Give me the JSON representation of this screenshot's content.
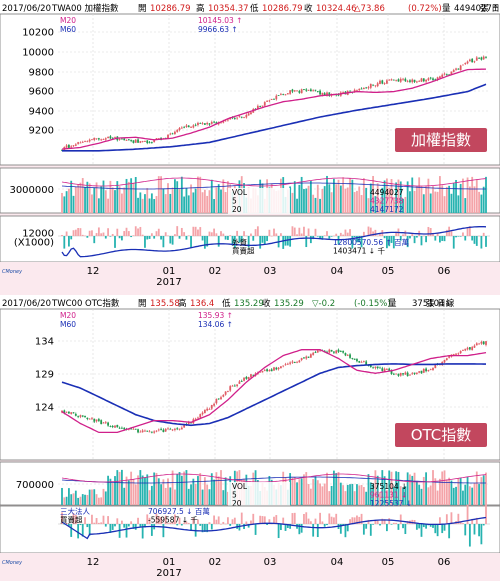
{
  "charts": [
    {
      "date": "2017/06/20",
      "symbol": "TWA00 加權指數",
      "quote": {
        "open_label": "開",
        "open": "10286.79",
        "high_label": "高",
        "high": "10354.37",
        "low_label": "低",
        "low": "10286.79",
        "close_label": "收",
        "close": "10324.46",
        "change": "△73.86",
        "pct": "(0.72%)",
        "vol_label": "量",
        "vol": "4494027↑",
        "tail": "張 日線"
      },
      "ma": [
        {
          "label": "M20",
          "value": "10145.03 ↑",
          "color": "#d0208a"
        },
        {
          "label": "M60",
          "value": "9966.63 ↑",
          "color": "#1a2fb5"
        }
      ],
      "price_ticks": [
        "10200",
        "10000",
        "9800",
        "9600",
        "9400",
        "9200"
      ],
      "badge": "加權指數",
      "vol_tick": "3000000",
      "vol_legend": [
        {
          "label": "VOL",
          "value": "4494027",
          "color": "#000000"
        },
        {
          "label": "5",
          "value": "4327738",
          "color": "#d0208a"
        },
        {
          "label": "20",
          "value": "4147172",
          "color": "#1a2fb5"
        }
      ],
      "ind_ticks": [
        "12000",
        "(X1000)"
      ],
      "ind_legend": [
        {
          "label": "外資",
          "color": "#000000"
        },
        {
          "label": "買賣超",
          "color": "#000000"
        }
      ],
      "ind_values": [
        {
          "value": "12800570.56 ↑ 百萬",
          "color": "#1a2fb5"
        },
        {
          "value": "1403471 ↓ 千",
          "color": "#000000"
        }
      ],
      "months": [
        "12",
        "01",
        "02",
        "03",
        "04",
        "05",
        "06"
      ],
      "year": "2017",
      "logo": "CMoney"
    },
    {
      "date": "2017/06/20",
      "symbol": "TWC00 OTC指數",
      "quote": {
        "open_label": "開",
        "open": "135.58",
        "high_label": "高",
        "high": "136.4",
        "low_label": "低",
        "low": "135.29",
        "close_label": "收",
        "close": "135.29",
        "change": "▽-0.2",
        "pct": "(-0.15%)",
        "vol_label": "量",
        "vol": "375104↓",
        "tail": "張 日線"
      },
      "ma": [
        {
          "label": "M20",
          "value": "135.93 ↑",
          "color": "#d0208a"
        },
        {
          "label": "M60",
          "value": "134.06 ↑",
          "color": "#1a2fb5"
        }
      ],
      "price_ticks": [
        "134",
        "129",
        "124"
      ],
      "badge": "OTC指數",
      "vol_tick": "700000",
      "vol_legend": [
        {
          "label": "VOL",
          "value": "375104 ↓",
          "color": "#000000"
        },
        {
          "label": "5",
          "value": "961131 ↓",
          "color": "#d0208a"
        },
        {
          "label": "20",
          "value": "1225537 ↓",
          "color": "#1a2fb5"
        }
      ],
      "ind_ticks": [],
      "ind_legend": [
        {
          "label": "三大法人",
          "color": "#1a2fb5"
        },
        {
          "label": "買賣超",
          "color": "#000000"
        }
      ],
      "ind_values": [
        {
          "value": "706927.5 ↓ 百萬",
          "color": "#1a2fb5"
        },
        {
          "value": "-559587 ↓ 千",
          "color": "#000000"
        }
      ],
      "months": [
        "12",
        "01",
        "02",
        "03",
        "04",
        "05",
        "06"
      ],
      "year": "2017",
      "logo": "CMoney"
    }
  ],
  "chart_data": [
    {
      "type": "candlestick",
      "title": "TWA00 加權指數",
      "y_range": [
        9060,
        10560
      ],
      "ma20_points": [
        [
          0,
          9200
        ],
        [
          8,
          9220
        ],
        [
          16,
          9270
        ],
        [
          24,
          9330
        ],
        [
          32,
          9340
        ],
        [
          40,
          9310
        ],
        [
          48,
          9330
        ],
        [
          56,
          9390
        ],
        [
          64,
          9460
        ],
        [
          72,
          9560
        ],
        [
          80,
          9630
        ],
        [
          88,
          9700
        ],
        [
          96,
          9760
        ],
        [
          104,
          9790
        ],
        [
          112,
          9830
        ],
        [
          120,
          9850
        ],
        [
          128,
          9880
        ],
        [
          136,
          9870
        ],
        [
          144,
          9880
        ],
        [
          152,
          9920
        ],
        [
          160,
          9990
        ],
        [
          168,
          10070
        ],
        [
          176,
          10140
        ],
        [
          184,
          10145
        ]
      ],
      "ma60_points": [
        [
          0,
          9180
        ],
        [
          16,
          9180
        ],
        [
          32,
          9200
        ],
        [
          48,
          9230
        ],
        [
          64,
          9280
        ],
        [
          80,
          9380
        ],
        [
          96,
          9480
        ],
        [
          112,
          9580
        ],
        [
          128,
          9660
        ],
        [
          144,
          9730
        ],
        [
          160,
          9800
        ],
        [
          176,
          9880
        ],
        [
          184,
          9966
        ]
      ],
      "volume_range": [
        0,
        6000000
      ],
      "foreign_cum_range": [
        9000,
        13200
      ]
    },
    {
      "type": "candlestick",
      "title": "TWC00 OTC指數",
      "y_range": [
        118.5,
        140
      ],
      "ma20_points": [
        [
          0,
          126
        ],
        [
          8,
          124
        ],
        [
          16,
          122.5
        ],
        [
          24,
          122.5
        ],
        [
          32,
          123.5
        ],
        [
          40,
          124.5
        ],
        [
          48,
          124.5
        ],
        [
          56,
          124.2
        ],
        [
          64,
          125.5
        ],
        [
          72,
          128
        ],
        [
          80,
          131
        ],
        [
          88,
          133.5
        ],
        [
          96,
          135.5
        ],
        [
          104,
          136.5
        ],
        [
          112,
          136.5
        ],
        [
          120,
          135
        ],
        [
          128,
          133
        ],
        [
          136,
          132.5
        ],
        [
          144,
          133
        ],
        [
          152,
          134
        ],
        [
          160,
          135
        ],
        [
          168,
          135.5
        ],
        [
          176,
          135.5
        ],
        [
          184,
          136
        ]
      ],
      "ma60_points": [
        [
          0,
          131
        ],
        [
          8,
          130
        ],
        [
          16,
          128.5
        ],
        [
          24,
          127
        ],
        [
          32,
          125.5
        ],
        [
          40,
          124.5
        ],
        [
          48,
          124
        ],
        [
          56,
          123.7
        ],
        [
          64,
          124
        ],
        [
          72,
          125
        ],
        [
          80,
          126.5
        ],
        [
          88,
          128
        ],
        [
          96,
          129.5
        ],
        [
          104,
          131
        ],
        [
          112,
          132.5
        ],
        [
          120,
          133.5
        ],
        [
          128,
          133.8
        ],
        [
          136,
          134
        ],
        [
          144,
          134.1
        ],
        [
          152,
          134
        ],
        [
          160,
          134
        ],
        [
          168,
          134.1
        ],
        [
          176,
          134.1
        ],
        [
          184,
          134.06
        ]
      ],
      "volume_range": [
        0,
        1500000
      ]
    }
  ]
}
